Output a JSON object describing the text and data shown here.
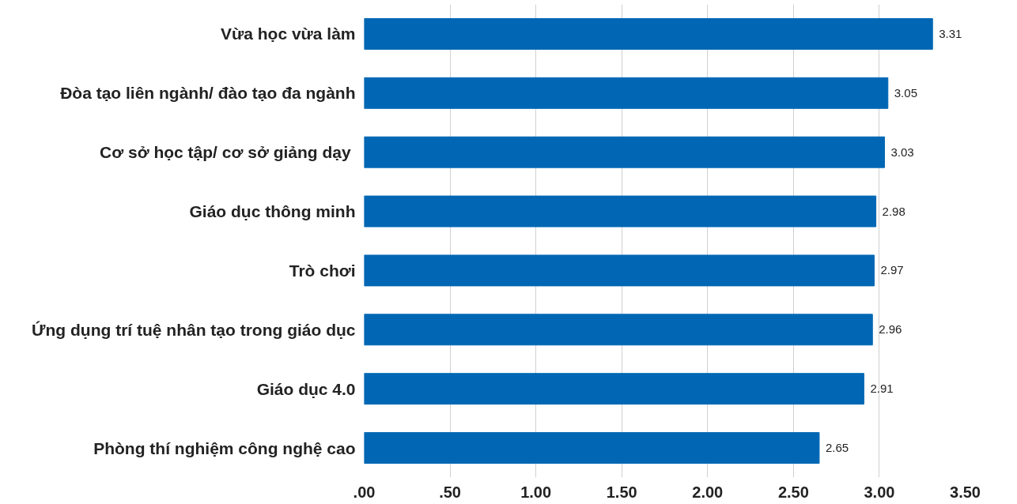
{
  "chart_data": {
    "type": "bar",
    "orientation": "horizontal",
    "categories": [
      "Vừa học vừa làm",
      "Đòa tạo liên ngành/ đào tạo đa ngành",
      "Cơ sở  học tập/ cơ sở giảng dạy",
      "Giáo dục thông minh",
      "Trò chơi",
      "Ứng dụng trí tuệ nhân tạo trong giáo dục",
      "Giáo dục 4.0",
      "Phòng thí nghiệm công nghệ cao"
    ],
    "values": [
      3.31,
      3.05,
      3.03,
      2.98,
      2.97,
      2.96,
      2.91,
      2.65
    ],
    "color": "#0167b4",
    "xlim": [
      0,
      3.5
    ],
    "xticks": [
      {
        "value": 0,
        "label": ".00"
      },
      {
        "value": 0.5,
        "label": ".50"
      },
      {
        "value": 1.0,
        "label": "1.00"
      },
      {
        "value": 1.5,
        "label": "1.50"
      },
      {
        "value": 2.0,
        "label": "2.00"
      },
      {
        "value": 2.5,
        "label": "2.50"
      },
      {
        "value": 3.0,
        "label": "3.00"
      },
      {
        "value": 3.5,
        "label": "3.50"
      }
    ],
    "grid": "x",
    "data_labels": true
  }
}
